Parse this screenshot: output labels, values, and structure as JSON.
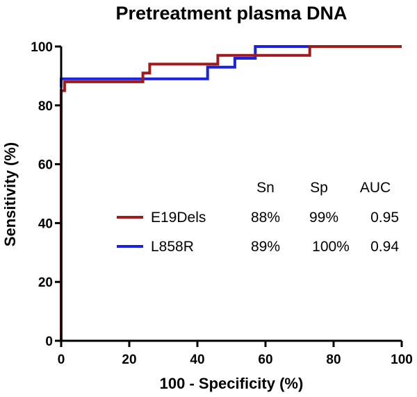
{
  "chart_data": {
    "type": "line",
    "title": "Pretreatment plasma DNA",
    "xlabel": "100 - Specificity (%)",
    "ylabel": "Sensitivity (%)",
    "xlim": [
      0,
      100
    ],
    "ylim": [
      0,
      100
    ],
    "xticks": [
      "0",
      "20",
      "40",
      "60",
      "80",
      "100"
    ],
    "yticks": [
      "0",
      "20",
      "40",
      "60",
      "80",
      "100"
    ],
    "grid": false,
    "legend": {
      "headers": [
        "Sn",
        "Sp",
        "AUC"
      ],
      "placement": "center-right"
    },
    "series": [
      {
        "name": "E19Dels",
        "color": "#a01c1c",
        "stats": [
          "88%",
          "99%",
          "0.95"
        ],
        "x": [
          0,
          0,
          1,
          1,
          24,
          24,
          26,
          26,
          46,
          46,
          73,
          73,
          100
        ],
        "y": [
          0,
          85,
          85,
          88,
          88,
          91,
          91,
          94,
          94,
          97,
          97,
          100,
          100
        ]
      },
      {
        "name": "L858R",
        "color": "#1a22e0",
        "stats": [
          "89%",
          "100%",
          "0.94"
        ],
        "x": [
          0,
          0,
          43,
          43,
          51,
          51,
          57,
          57,
          73
        ],
        "y": [
          86,
          89,
          89,
          93,
          93,
          96,
          96,
          100,
          100
        ]
      }
    ]
  }
}
